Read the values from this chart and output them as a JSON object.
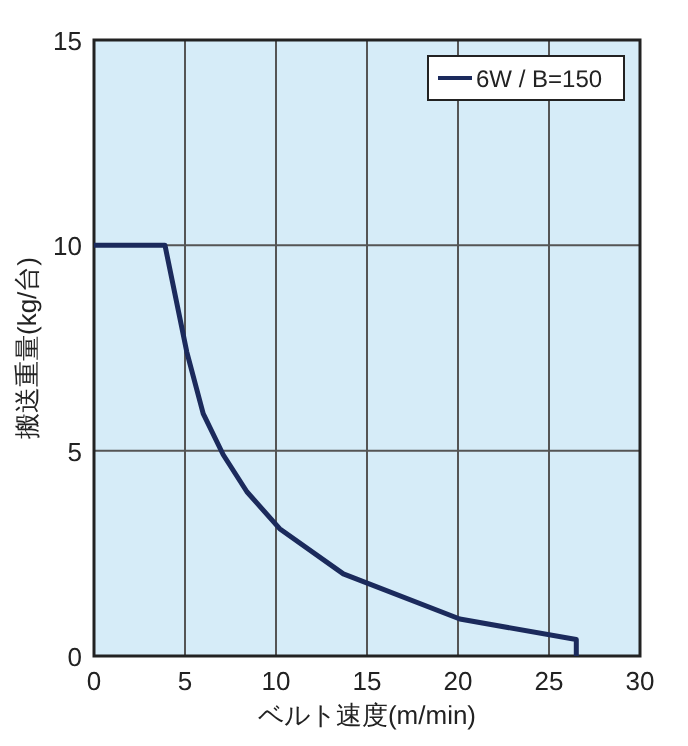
{
  "chart_data": {
    "type": "line",
    "xlabel": "ベルト速度(m/min)",
    "ylabel": "搬送重量(kg/台)",
    "xlim": [
      0,
      30
    ],
    "ylim": [
      0,
      15
    ],
    "xticks": [
      0,
      5,
      10,
      15,
      20,
      25,
      30
    ],
    "yticks": [
      0,
      5,
      10,
      15
    ],
    "grid": true,
    "legend": "top right",
    "marker": "none",
    "line_style": "solid",
    "series": [
      {
        "name": "6W / B=150",
        "color": "#1b2a5c",
        "x": [
          0,
          3.9,
          5.1,
          6.0,
          7.1,
          8.4,
          10.2,
          13.7,
          20.1,
          26.5,
          26.5
        ],
        "values": [
          10,
          10,
          7.4,
          5.9,
          4.9,
          4.0,
          3.1,
          2.0,
          0.9,
          0.4,
          0
        ]
      }
    ]
  }
}
